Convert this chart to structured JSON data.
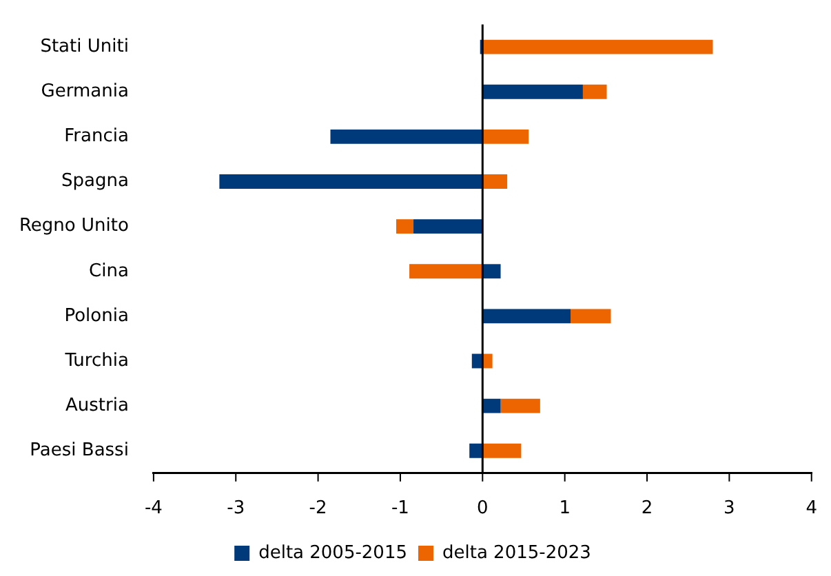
{
  "chart_data": {
    "type": "bar",
    "orientation": "horizontal",
    "stacked": true,
    "categories": [
      "Stati Uniti",
      "Germania",
      "Francia",
      "Spagna",
      "Regno Unito",
      "Cina",
      "Polonia",
      "Turchia",
      "Austria",
      "Paesi Bassi"
    ],
    "series": [
      {
        "name": "delta 2005-2015",
        "color": "#003a7a",
        "values": [
          -0.03,
          1.22,
          -1.85,
          -3.2,
          -0.84,
          0.22,
          1.07,
          -0.13,
          0.22,
          -0.16
        ]
      },
      {
        "name": "delta 2015-2023",
        "color": "#ec6500",
        "values": [
          2.8,
          0.29,
          0.56,
          0.3,
          -0.21,
          -0.89,
          0.49,
          0.12,
          0.48,
          0.47
        ]
      }
    ],
    "xlim": [
      -4,
      4
    ],
    "xticks": [
      -4,
      -3,
      -2,
      -1,
      0,
      1,
      2,
      3,
      4
    ],
    "ref_lines": [
      {
        "axis": "x",
        "value": 0,
        "color": "#000000"
      }
    ],
    "grid": false,
    "legend": "bottom"
  }
}
